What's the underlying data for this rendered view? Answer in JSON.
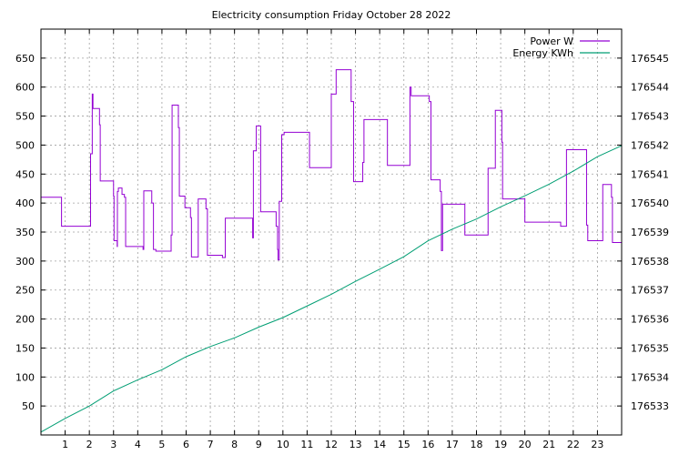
{
  "chart_data": {
    "type": "line",
    "title": "Electricity consumption Friday October 28 2022",
    "xlim": [
      0,
      24
    ],
    "xticks": [
      1,
      2,
      3,
      4,
      5,
      6,
      7,
      8,
      9,
      10,
      11,
      12,
      13,
      14,
      15,
      16,
      17,
      18,
      19,
      20,
      21,
      22,
      23
    ],
    "y_left": {
      "lim": [
        0,
        700
      ],
      "ticks": [
        50,
        100,
        150,
        200,
        250,
        300,
        350,
        400,
        450,
        500,
        550,
        600,
        650
      ]
    },
    "y_right": {
      "lim": [
        176532,
        176546
      ],
      "ticks": [
        176533,
        176534,
        176535,
        176536,
        176537,
        176538,
        176539,
        176540,
        176541,
        176542,
        176543,
        176544,
        176545
      ]
    },
    "grid": true,
    "legend_position": "top-right",
    "series": [
      {
        "name": "Power W",
        "color": "#9400d3",
        "axis": "left",
        "step": true,
        "points": [
          [
            0,
            410
          ],
          [
            0.85,
            410
          ],
          [
            0.85,
            360
          ],
          [
            2.05,
            360
          ],
          [
            2.05,
            485
          ],
          [
            2.12,
            588
          ],
          [
            2.15,
            563
          ],
          [
            2.38,
            563
          ],
          [
            2.42,
            535
          ],
          [
            2.45,
            438
          ],
          [
            2.95,
            438
          ],
          [
            3,
            412
          ],
          [
            3.02,
            335
          ],
          [
            3.12,
            335
          ],
          [
            3.15,
            325
          ],
          [
            3.16,
            420
          ],
          [
            3.2,
            426
          ],
          [
            3.32,
            426
          ],
          [
            3.35,
            415
          ],
          [
            3.45,
            410
          ],
          [
            3.5,
            325
          ],
          [
            4.2,
            325
          ],
          [
            4.22,
            320
          ],
          [
            4.25,
            421
          ],
          [
            4.55,
            421
          ],
          [
            4.58,
            400
          ],
          [
            4.65,
            320
          ],
          [
            4.75,
            317
          ],
          [
            5.35,
            317
          ],
          [
            5.38,
            345
          ],
          [
            5.42,
            569
          ],
          [
            5.65,
            569
          ],
          [
            5.68,
            530
          ],
          [
            5.72,
            412
          ],
          [
            5.92,
            412
          ],
          [
            5.95,
            392
          ],
          [
            6.15,
            392
          ],
          [
            6.18,
            375
          ],
          [
            6.22,
            307
          ],
          [
            6.45,
            307
          ],
          [
            6.5,
            407
          ],
          [
            6.8,
            407
          ],
          [
            6.82,
            390
          ],
          [
            6.88,
            310
          ],
          [
            7.45,
            310
          ],
          [
            7.5,
            306
          ],
          [
            7.6,
            306
          ],
          [
            7.62,
            374
          ],
          [
            8.72,
            374
          ],
          [
            8.75,
            340
          ],
          [
            8.78,
            490
          ],
          [
            8.85,
            490
          ],
          [
            8.9,
            533
          ],
          [
            9.05,
            533
          ],
          [
            9.08,
            385
          ],
          [
            9.7,
            385
          ],
          [
            9.72,
            360
          ],
          [
            9.78,
            320
          ],
          [
            9.8,
            302
          ],
          [
            9.85,
            403
          ],
          [
            9.92,
            403
          ],
          [
            9.95,
            518
          ],
          [
            10.05,
            522
          ],
          [
            11.1,
            522
          ],
          [
            11.1,
            461
          ],
          [
            11.95,
            461
          ],
          [
            12.0,
            588
          ],
          [
            12.15,
            588
          ],
          [
            12.2,
            630
          ],
          [
            12.8,
            630
          ],
          [
            12.82,
            575
          ],
          [
            12.92,
            437
          ],
          [
            13.25,
            437
          ],
          [
            13.3,
            470
          ],
          [
            13.35,
            544
          ],
          [
            14.3,
            544
          ],
          [
            14.32,
            465
          ],
          [
            15.2,
            465
          ],
          [
            15.25,
            600
          ],
          [
            15.3,
            585
          ],
          [
            16.0,
            585
          ],
          [
            16.05,
            575
          ],
          [
            16.12,
            440
          ],
          [
            16.45,
            440
          ],
          [
            16.5,
            420
          ],
          [
            16.55,
            318
          ],
          [
            16.6,
            398
          ],
          [
            17.5,
            398
          ],
          [
            17.52,
            345
          ],
          [
            18.45,
            345
          ],
          [
            18.48,
            460
          ],
          [
            18.75,
            460
          ],
          [
            18.78,
            560
          ],
          [
            19.0,
            560
          ],
          [
            19.05,
            505
          ],
          [
            19.08,
            407
          ],
          [
            19.95,
            407
          ],
          [
            20.0,
            367
          ],
          [
            21.45,
            367
          ],
          [
            21.48,
            360
          ],
          [
            21.7,
            360
          ],
          [
            21.72,
            492
          ],
          [
            22.5,
            492
          ],
          [
            22.55,
            362
          ],
          [
            22.6,
            335
          ],
          [
            23.2,
            335
          ],
          [
            23.22,
            432
          ],
          [
            23.52,
            432
          ],
          [
            23.58,
            410
          ],
          [
            23.62,
            332
          ],
          [
            24,
            332
          ]
        ]
      },
      {
        "name": "Energy KWh",
        "color": "#009e73",
        "axis": "right",
        "step": false,
        "points": [
          [
            0,
            176532.1
          ],
          [
            1,
            176532.57
          ],
          [
            2,
            176533.0
          ],
          [
            3,
            176533.52
          ],
          [
            4,
            176533.9
          ],
          [
            5,
            176534.25
          ],
          [
            6,
            176534.7
          ],
          [
            7,
            176535.05
          ],
          [
            8,
            176535.35
          ],
          [
            9,
            176535.72
          ],
          [
            10,
            176536.05
          ],
          [
            11,
            176536.45
          ],
          [
            12,
            176536.85
          ],
          [
            13,
            176537.3
          ],
          [
            14,
            176537.72
          ],
          [
            15,
            176538.15
          ],
          [
            16,
            176538.7
          ],
          [
            17,
            176539.1
          ],
          [
            18,
            176539.45
          ],
          [
            19,
            176539.87
          ],
          [
            20,
            176540.25
          ],
          [
            21,
            176540.65
          ],
          [
            22,
            176541.1
          ],
          [
            23,
            176541.6
          ],
          [
            24,
            176541.98
          ]
        ]
      }
    ]
  }
}
